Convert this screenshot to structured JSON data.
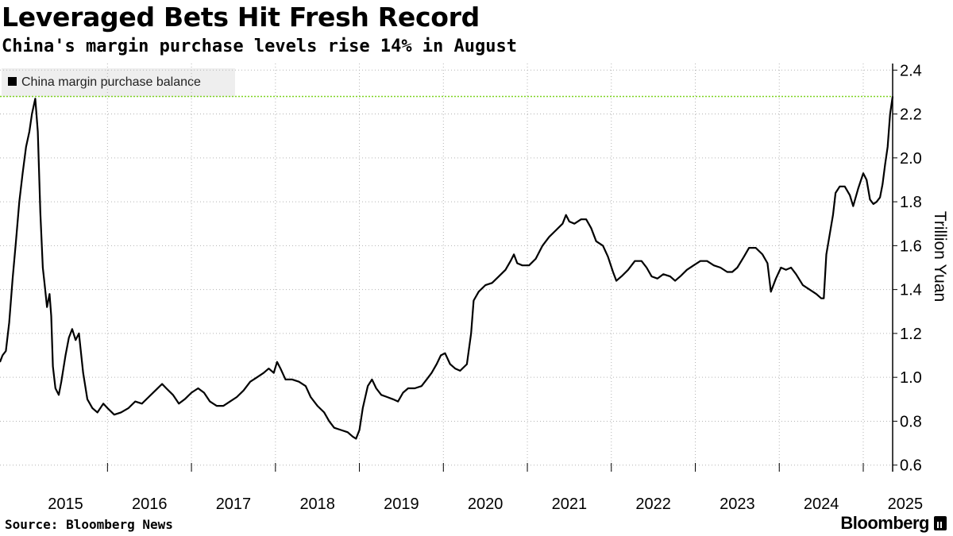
{
  "chart_data": {
    "type": "line",
    "title": "Leveraged Bets Hit Fresh Record",
    "subtitle": "China's margin purchase levels rise 14% in August",
    "ylabel": "Trillion Yuan",
    "ylim": [
      0.57,
      2.43
    ],
    "yticks": [
      "0.6",
      "0.8",
      "1.0",
      "1.2",
      "1.4",
      "1.6",
      "1.8",
      "2.0",
      "2.2",
      "2.4"
    ],
    "xlim": [
      2014.72,
      2025.35
    ],
    "xticks": [
      "2015",
      "2016",
      "2017",
      "2018",
      "2019",
      "2020",
      "2021",
      "2022",
      "2023",
      "2024",
      "2025"
    ],
    "y_axis_position": "right",
    "grid": "horizontal dotted",
    "legend_position": "top-left",
    "reference_line": {
      "y": 2.28,
      "color": "#7ed321",
      "style": "dotted"
    },
    "series": [
      {
        "name": "China margin purchase balance",
        "color": "#000000",
        "points": [
          [
            2014.72,
            1.07
          ],
          [
            2014.75,
            1.1
          ],
          [
            2014.79,
            1.12
          ],
          [
            2014.83,
            1.25
          ],
          [
            2014.87,
            1.45
          ],
          [
            2014.91,
            1.62
          ],
          [
            2014.95,
            1.8
          ],
          [
            2014.99,
            1.93
          ],
          [
            2015.03,
            2.05
          ],
          [
            2015.07,
            2.12
          ],
          [
            2015.1,
            2.2
          ],
          [
            2015.14,
            2.27
          ],
          [
            2015.17,
            2.12
          ],
          [
            2015.2,
            1.75
          ],
          [
            2015.23,
            1.5
          ],
          [
            2015.25,
            1.43
          ],
          [
            2015.28,
            1.32
          ],
          [
            2015.31,
            1.38
          ],
          [
            2015.33,
            1.28
          ],
          [
            2015.35,
            1.05
          ],
          [
            2015.38,
            0.95
          ],
          [
            2015.42,
            0.92
          ],
          [
            2015.45,
            0.98
          ],
          [
            2015.5,
            1.1
          ],
          [
            2015.54,
            1.18
          ],
          [
            2015.58,
            1.22
          ],
          [
            2015.62,
            1.17
          ],
          [
            2015.66,
            1.2
          ],
          [
            2015.71,
            1.02
          ],
          [
            2015.76,
            0.9
          ],
          [
            2015.82,
            0.86
          ],
          [
            2015.88,
            0.84
          ],
          [
            2015.95,
            0.88
          ],
          [
            2016.0,
            0.86
          ],
          [
            2016.08,
            0.83
          ],
          [
            2016.16,
            0.84
          ],
          [
            2016.25,
            0.86
          ],
          [
            2016.33,
            0.89
          ],
          [
            2016.41,
            0.88
          ],
          [
            2016.49,
            0.91
          ],
          [
            2016.57,
            0.94
          ],
          [
            2016.65,
            0.97
          ],
          [
            2016.7,
            0.95
          ],
          [
            2016.78,
            0.92
          ],
          [
            2016.85,
            0.88
          ],
          [
            2016.92,
            0.9
          ],
          [
            2017.0,
            0.93
          ],
          [
            2017.08,
            0.95
          ],
          [
            2017.15,
            0.93
          ],
          [
            2017.22,
            0.89
          ],
          [
            2017.3,
            0.87
          ],
          [
            2017.38,
            0.87
          ],
          [
            2017.46,
            0.89
          ],
          [
            2017.54,
            0.91
          ],
          [
            2017.62,
            0.94
          ],
          [
            2017.7,
            0.98
          ],
          [
            2017.78,
            1.0
          ],
          [
            2017.86,
            1.02
          ],
          [
            2017.92,
            1.04
          ],
          [
            2017.98,
            1.02
          ],
          [
            2018.02,
            1.07
          ],
          [
            2018.06,
            1.04
          ],
          [
            2018.12,
            0.99
          ],
          [
            2018.2,
            0.99
          ],
          [
            2018.28,
            0.98
          ],
          [
            2018.36,
            0.96
          ],
          [
            2018.42,
            0.91
          ],
          [
            2018.5,
            0.87
          ],
          [
            2018.58,
            0.84
          ],
          [
            2018.64,
            0.8
          ],
          [
            2018.7,
            0.77
          ],
          [
            2018.78,
            0.76
          ],
          [
            2018.86,
            0.75
          ],
          [
            2018.92,
            0.73
          ],
          [
            2018.96,
            0.72
          ],
          [
            2019.0,
            0.76
          ],
          [
            2019.04,
            0.86
          ],
          [
            2019.1,
            0.96
          ],
          [
            2019.15,
            0.99
          ],
          [
            2019.2,
            0.95
          ],
          [
            2019.26,
            0.92
          ],
          [
            2019.33,
            0.91
          ],
          [
            2019.4,
            0.9
          ],
          [
            2019.46,
            0.89
          ],
          [
            2019.52,
            0.93
          ],
          [
            2019.58,
            0.95
          ],
          [
            2019.66,
            0.95
          ],
          [
            2019.74,
            0.96
          ],
          [
            2019.8,
            0.99
          ],
          [
            2019.86,
            1.02
          ],
          [
            2019.92,
            1.06
          ],
          [
            2019.97,
            1.1
          ],
          [
            2020.02,
            1.11
          ],
          [
            2020.08,
            1.06
          ],
          [
            2020.14,
            1.04
          ],
          [
            2020.2,
            1.03
          ],
          [
            2020.28,
            1.06
          ],
          [
            2020.33,
            1.2
          ],
          [
            2020.36,
            1.35
          ],
          [
            2020.42,
            1.39
          ],
          [
            2020.5,
            1.42
          ],
          [
            2020.58,
            1.43
          ],
          [
            2020.66,
            1.46
          ],
          [
            2020.74,
            1.49
          ],
          [
            2020.8,
            1.53
          ],
          [
            2020.84,
            1.56
          ],
          [
            2020.88,
            1.52
          ],
          [
            2020.94,
            1.51
          ],
          [
            2021.02,
            1.51
          ],
          [
            2021.1,
            1.54
          ],
          [
            2021.18,
            1.6
          ],
          [
            2021.26,
            1.64
          ],
          [
            2021.34,
            1.67
          ],
          [
            2021.42,
            1.7
          ],
          [
            2021.46,
            1.74
          ],
          [
            2021.5,
            1.71
          ],
          [
            2021.56,
            1.7
          ],
          [
            2021.64,
            1.72
          ],
          [
            2021.7,
            1.72
          ],
          [
            2021.76,
            1.68
          ],
          [
            2021.82,
            1.62
          ],
          [
            2021.9,
            1.6
          ],
          [
            2021.96,
            1.55
          ],
          [
            2022.02,
            1.48
          ],
          [
            2022.06,
            1.44
          ],
          [
            2022.12,
            1.46
          ],
          [
            2022.2,
            1.49
          ],
          [
            2022.28,
            1.53
          ],
          [
            2022.36,
            1.53
          ],
          [
            2022.42,
            1.5
          ],
          [
            2022.48,
            1.46
          ],
          [
            2022.55,
            1.45
          ],
          [
            2022.62,
            1.47
          ],
          [
            2022.7,
            1.46
          ],
          [
            2022.76,
            1.44
          ],
          [
            2022.82,
            1.46
          ],
          [
            2022.9,
            1.49
          ],
          [
            2022.98,
            1.51
          ],
          [
            2023.06,
            1.53
          ],
          [
            2023.14,
            1.53
          ],
          [
            2023.22,
            1.51
          ],
          [
            2023.3,
            1.5
          ],
          [
            2023.38,
            1.48
          ],
          [
            2023.44,
            1.48
          ],
          [
            2023.5,
            1.5
          ],
          [
            2023.58,
            1.55
          ],
          [
            2023.64,
            1.59
          ],
          [
            2023.72,
            1.59
          ],
          [
            2023.8,
            1.56
          ],
          [
            2023.86,
            1.52
          ],
          [
            2023.9,
            1.39
          ],
          [
            2023.96,
            1.45
          ],
          [
            2024.02,
            1.5
          ],
          [
            2024.08,
            1.49
          ],
          [
            2024.14,
            1.5
          ],
          [
            2024.2,
            1.47
          ],
          [
            2024.28,
            1.42
          ],
          [
            2024.36,
            1.4
          ],
          [
            2024.44,
            1.38
          ],
          [
            2024.5,
            1.36
          ],
          [
            2024.53,
            1.36
          ],
          [
            2024.56,
            1.56
          ],
          [
            2024.6,
            1.65
          ],
          [
            2024.64,
            1.74
          ],
          [
            2024.67,
            1.84
          ],
          [
            2024.72,
            1.87
          ],
          [
            2024.78,
            1.87
          ],
          [
            2024.84,
            1.83
          ],
          [
            2024.88,
            1.78
          ],
          [
            2024.94,
            1.86
          ],
          [
            2025.0,
            1.93
          ],
          [
            2025.04,
            1.9
          ],
          [
            2025.08,
            1.81
          ],
          [
            2025.12,
            1.79
          ],
          [
            2025.16,
            1.8
          ],
          [
            2025.2,
            1.82
          ],
          [
            2025.23,
            1.88
          ],
          [
            2025.26,
            1.97
          ],
          [
            2025.29,
            2.05
          ],
          [
            2025.32,
            2.2
          ],
          [
            2025.35,
            2.28
          ]
        ]
      }
    ]
  },
  "footer": {
    "source": "Source: Bloomberg News",
    "brand": "Bloomberg"
  }
}
